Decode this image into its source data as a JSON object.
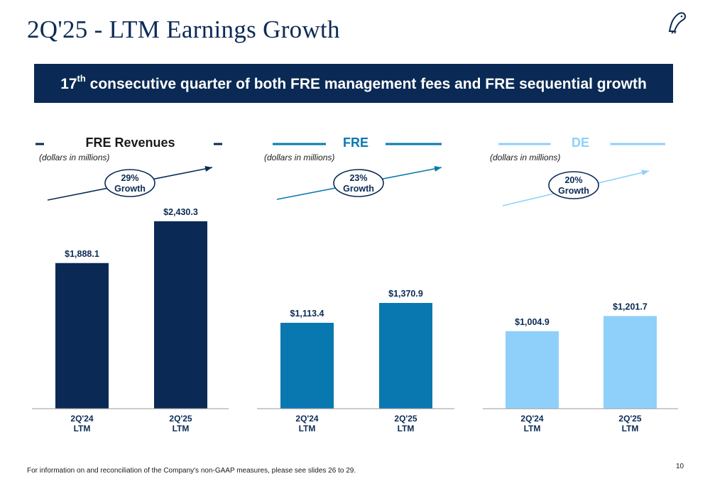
{
  "page": {
    "title": "2Q'25 - LTM Earnings Growth",
    "banner_prefix": "17",
    "banner_sup": "th",
    "banner_text": " consecutive quarter of both FRE management fees and FRE sequential growth",
    "footnote": "For information on and reconciliation of the Company's non-GAAP measures, please see slides 26 to 29.",
    "page_number": "10",
    "logo_icon": "bird-logo-icon"
  },
  "chart_data": [
    {
      "type": "bar",
      "title": "FRE Revenues",
      "subtitle": "(dollars in millions)",
      "categories": [
        "2Q'24 LTM",
        "2Q'25 LTM"
      ],
      "category_lines": [
        [
          "2Q'24",
          "LTM"
        ],
        [
          "2Q'25",
          "LTM"
        ]
      ],
      "values": [
        1888.1,
        2430.3
      ],
      "data_labels": [
        "$1,888.1",
        "$2,430.3"
      ],
      "growth_label": [
        "29%",
        "Growth"
      ],
      "color": "#0a2a55",
      "grid": false
    },
    {
      "type": "bar",
      "title": "FRE",
      "subtitle": "(dollars in millions)",
      "categories": [
        "2Q'24 LTM",
        "2Q'25 LTM"
      ],
      "category_lines": [
        [
          "2Q'24",
          "LTM"
        ],
        [
          "2Q'25",
          "LTM"
        ]
      ],
      "values": [
        1113.4,
        1370.9
      ],
      "data_labels": [
        "$1,113.4",
        "$1,370.9"
      ],
      "growth_label": [
        "23%",
        "Growth"
      ],
      "color": "#0a78b0",
      "grid": false
    },
    {
      "type": "bar",
      "title": "DE",
      "subtitle": "(dollars in millions)",
      "categories": [
        "2Q'24 LTM",
        "2Q'25 LTM"
      ],
      "category_lines": [
        [
          "2Q'24",
          "LTM"
        ],
        [
          "2Q'25",
          "LTM"
        ]
      ],
      "values": [
        1004.9,
        1201.7
      ],
      "data_labels": [
        "$1,004.9",
        "$1,201.7"
      ],
      "growth_label": [
        "20%",
        "Growth"
      ],
      "color": "#8fd0fb",
      "grid": false
    }
  ]
}
